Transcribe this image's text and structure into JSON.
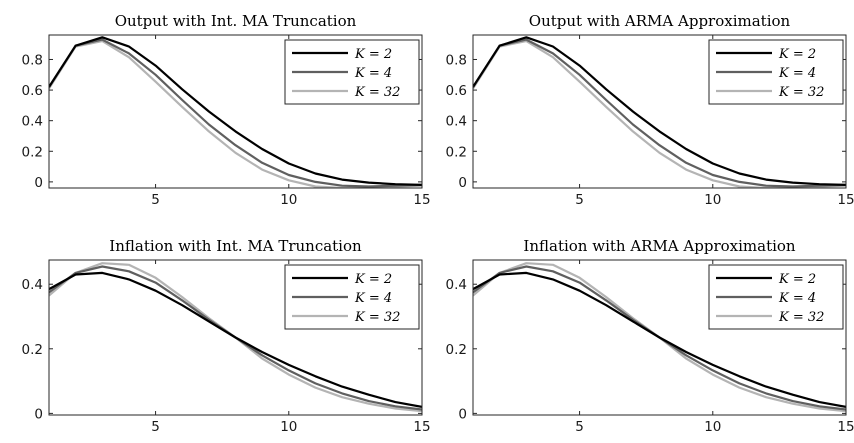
{
  "figure": {
    "colors": {
      "K2": "#000000",
      "K4": "#5f5f5f",
      "K32": "#b4b4b4",
      "axis": "#262626"
    }
  },
  "chart_data": [
    {
      "type": "line",
      "title": "Output with Int. MA Truncation",
      "xlabel": "",
      "ylabel": "",
      "xlim": [
        1,
        15
      ],
      "ylim": [
        -0.04,
        0.96
      ],
      "xticks": [
        5,
        10,
        15
      ],
      "yticks": [
        0,
        0.2,
        0.4,
        0.6,
        0.8
      ],
      "legend": "top-right",
      "x": [
        1,
        2,
        3,
        4,
        5,
        6,
        7,
        8,
        9,
        10,
        11,
        12,
        13,
        14,
        15
      ],
      "series": [
        {
          "name": "K = 2",
          "values": [
            0.62,
            0.89,
            0.945,
            0.885,
            0.76,
            0.605,
            0.46,
            0.33,
            0.215,
            0.12,
            0.055,
            0.015,
            -0.005,
            -0.015,
            -0.02
          ]
        },
        {
          "name": "K = 4",
          "values": [
            0.62,
            0.89,
            0.93,
            0.84,
            0.7,
            0.535,
            0.375,
            0.24,
            0.125,
            0.045,
            0.0,
            -0.025,
            -0.03,
            -0.025,
            -0.02
          ]
        },
        {
          "name": "K = 32",
          "values": [
            0.61,
            0.885,
            0.92,
            0.815,
            0.655,
            0.49,
            0.33,
            0.19,
            0.08,
            0.01,
            -0.03,
            -0.04,
            -0.04,
            -0.03,
            -0.025
          ]
        }
      ]
    },
    {
      "type": "line",
      "title": "Output with ARMA Approximation",
      "xlabel": "",
      "ylabel": "",
      "xlim": [
        1,
        15
      ],
      "ylim": [
        -0.04,
        0.96
      ],
      "xticks": [
        5,
        10,
        15
      ],
      "yticks": [
        0,
        0.2,
        0.4,
        0.6,
        0.8
      ],
      "legend": "top-right",
      "x": [
        1,
        2,
        3,
        4,
        5,
        6,
        7,
        8,
        9,
        10,
        11,
        12,
        13,
        14,
        15
      ],
      "series": [
        {
          "name": "K = 2",
          "values": [
            0.62,
            0.89,
            0.945,
            0.885,
            0.76,
            0.605,
            0.46,
            0.33,
            0.215,
            0.12,
            0.055,
            0.015,
            -0.005,
            -0.015,
            -0.02
          ]
        },
        {
          "name": "K = 4",
          "values": [
            0.62,
            0.89,
            0.93,
            0.84,
            0.7,
            0.535,
            0.375,
            0.24,
            0.125,
            0.045,
            0.0,
            -0.025,
            -0.03,
            -0.025,
            -0.02
          ]
        },
        {
          "name": "K = 32",
          "values": [
            0.61,
            0.885,
            0.92,
            0.815,
            0.655,
            0.49,
            0.33,
            0.19,
            0.08,
            0.01,
            -0.03,
            -0.04,
            -0.04,
            -0.03,
            -0.025
          ]
        }
      ]
    },
    {
      "type": "line",
      "title": "Inflation with Int. MA Truncation",
      "xlabel": "",
      "ylabel": "",
      "xlim": [
        1,
        15
      ],
      "ylim": [
        -0.005,
        0.475
      ],
      "xticks": [
        5,
        10,
        15
      ],
      "yticks": [
        0,
        0.2,
        0.4
      ],
      "legend": "top-right",
      "x": [
        1,
        2,
        3,
        4,
        5,
        6,
        7,
        8,
        9,
        10,
        11,
        12,
        13,
        14,
        15
      ],
      "series": [
        {
          "name": "K = 2",
          "values": [
            0.385,
            0.43,
            0.435,
            0.415,
            0.38,
            0.335,
            0.285,
            0.235,
            0.19,
            0.15,
            0.115,
            0.083,
            0.058,
            0.035,
            0.02
          ]
        },
        {
          "name": "K = 4",
          "values": [
            0.375,
            0.435,
            0.455,
            0.44,
            0.405,
            0.35,
            0.29,
            0.235,
            0.18,
            0.133,
            0.093,
            0.062,
            0.038,
            0.022,
            0.012
          ]
        },
        {
          "name": "K = 32",
          "values": [
            0.365,
            0.435,
            0.465,
            0.46,
            0.42,
            0.36,
            0.295,
            0.235,
            0.17,
            0.12,
            0.08,
            0.05,
            0.03,
            0.015,
            0.007
          ]
        }
      ]
    },
    {
      "type": "line",
      "title": "Inflation with ARMA Approximation",
      "xlabel": "",
      "ylabel": "",
      "xlim": [
        1,
        15
      ],
      "ylim": [
        -0.005,
        0.475
      ],
      "xticks": [
        5,
        10,
        15
      ],
      "yticks": [
        0,
        0.2,
        0.4
      ],
      "legend": "top-right",
      "x": [
        1,
        2,
        3,
        4,
        5,
        6,
        7,
        8,
        9,
        10,
        11,
        12,
        13,
        14,
        15
      ],
      "series": [
        {
          "name": "K = 2",
          "values": [
            0.385,
            0.43,
            0.435,
            0.415,
            0.38,
            0.335,
            0.285,
            0.235,
            0.19,
            0.15,
            0.115,
            0.083,
            0.058,
            0.035,
            0.02
          ]
        },
        {
          "name": "K = 4",
          "values": [
            0.375,
            0.435,
            0.455,
            0.44,
            0.405,
            0.35,
            0.29,
            0.235,
            0.18,
            0.133,
            0.093,
            0.062,
            0.038,
            0.022,
            0.012
          ]
        },
        {
          "name": "K = 32",
          "values": [
            0.365,
            0.435,
            0.465,
            0.46,
            0.42,
            0.36,
            0.295,
            0.235,
            0.17,
            0.12,
            0.08,
            0.05,
            0.03,
            0.015,
            0.007
          ]
        }
      ]
    }
  ]
}
